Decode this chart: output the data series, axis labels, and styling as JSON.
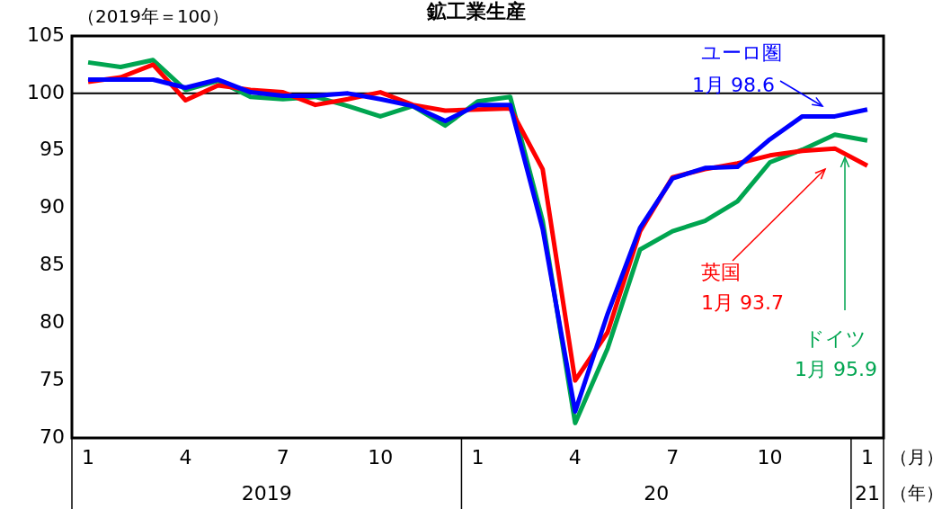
{
  "chart_data": {
    "type": "line",
    "title": "鉱工業生産",
    "ylabel": "（2019年＝100）",
    "xlabel": "（月）",
    "categories": [
      "1",
      null,
      null,
      "4",
      null,
      null,
      "7",
      null,
      null,
      "10",
      null,
      null,
      "1",
      null,
      null,
      "4",
      null,
      null,
      "7",
      null,
      null,
      "10",
      null,
      null,
      "1"
    ],
    "series": [
      {
        "name": "ユーロ圏",
        "color": "#0000ff",
        "values": [
          101.2,
          101.2,
          101.2,
          100.5,
          101.2,
          100.1,
          99.8,
          99.8,
          100.0,
          99.5,
          98.9,
          97.6,
          99.0,
          99.0,
          88.2,
          72.3,
          80.8,
          88.3,
          92.6,
          93.5,
          93.6,
          96.0,
          98.0,
          98.0,
          98.6
        ]
      },
      {
        "name": "英国",
        "color": "#ff0000",
        "values": [
          101.0,
          101.4,
          102.5,
          99.4,
          100.7,
          100.3,
          100.1,
          99.0,
          99.5,
          100.1,
          99.0,
          98.5,
          98.6,
          98.7,
          93.4,
          75.0,
          79.2,
          88.0,
          92.7,
          93.4,
          93.9,
          94.6,
          95.0,
          95.2,
          93.7
        ]
      },
      {
        "name": "ドイツ",
        "color": "#00a550",
        "values": [
          102.7,
          102.3,
          102.9,
          100.3,
          101.1,
          99.7,
          99.5,
          99.7,
          98.9,
          98.0,
          98.9,
          97.2,
          99.3,
          99.7,
          88.9,
          71.3,
          77.8,
          86.4,
          88.0,
          88.9,
          90.6,
          94.0,
          95.1,
          96.4,
          95.9
        ]
      }
    ],
    "ylim": [
      70,
      105
    ],
    "yticks": [
      70,
      75,
      80,
      85,
      90,
      95,
      100,
      105
    ],
    "grid": false,
    "legend": false,
    "marker": "none",
    "line_style": "solid",
    "ref_lines": [
      {
        "axis": "y",
        "value": 100,
        "color": "#000000"
      }
    ],
    "annotations": [
      "2019",
      "20",
      "21",
      "（年）",
      "1月 98.6",
      "1月 93.7",
      "1月 95.9"
    ]
  }
}
